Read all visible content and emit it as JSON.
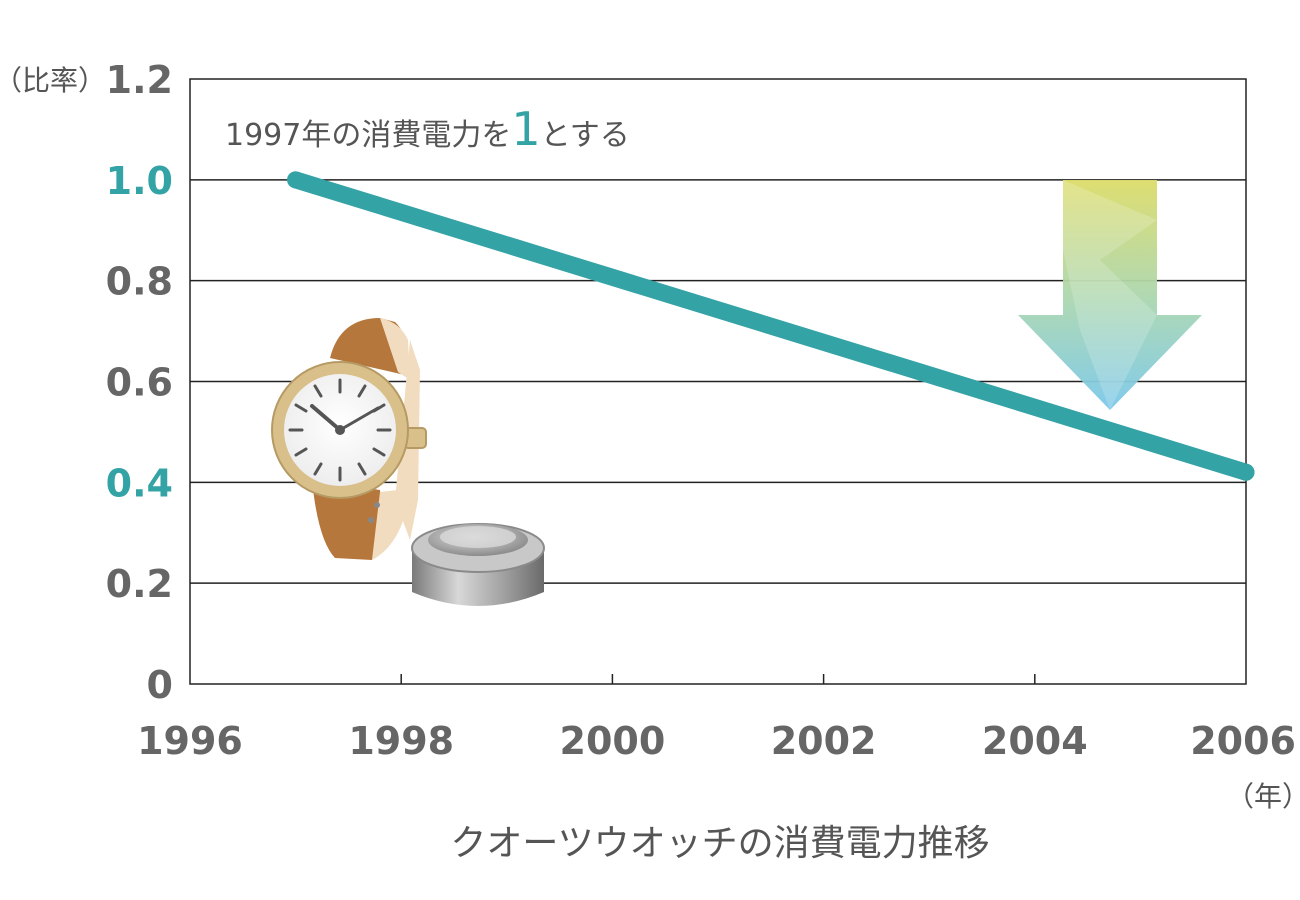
{
  "chart_data": {
    "type": "line",
    "title": "",
    "caption": "クオーツウオッチの消費電力推移",
    "ylabel_unit": "（比率）",
    "xlabel_unit": "（年）",
    "xlim": [
      1996,
      2006
    ],
    "ylim": [
      0,
      1.2
    ],
    "x_ticks": [
      "1996",
      "1998",
      "2000",
      "2002",
      "2004",
      "2006"
    ],
    "x_tick_values": [
      1996,
      1998,
      2000,
      2002,
      2004,
      2006
    ],
    "y_ticks": [
      "0",
      "0.2",
      "0.4",
      "0.6",
      "0.8",
      "1.0",
      "1.2"
    ],
    "y_tick_values": [
      0,
      0.2,
      0.4,
      0.6,
      0.8,
      1.0,
      1.2
    ],
    "highlighted_y_ticks": [
      "1.0",
      "0.4"
    ],
    "grid": "horizontal",
    "series": [
      {
        "points": [
          {
            "x": 1997,
            "y": 1.0
          },
          {
            "x": 2006,
            "y": 0.42
          }
        ]
      }
    ],
    "annotation": {
      "before": "1997年の消費電力を",
      "highlight": "1",
      "after": "とする"
    }
  },
  "colors": {
    "series_line": "#34a3a6",
    "highlight_tick": "#34a3a6",
    "tick_text": "#666666",
    "grid": "#222222",
    "arrow_top": "#dcdc6a",
    "arrow_bottom": "#7ac8ea",
    "watch_strap": "#b5773c",
    "watch_case": "#d9bf8a",
    "battery": "#a8a8a8"
  },
  "decorations": [
    "wristwatch-illustration",
    "button-cell-battery-illustration",
    "gradient-down-arrow"
  ]
}
